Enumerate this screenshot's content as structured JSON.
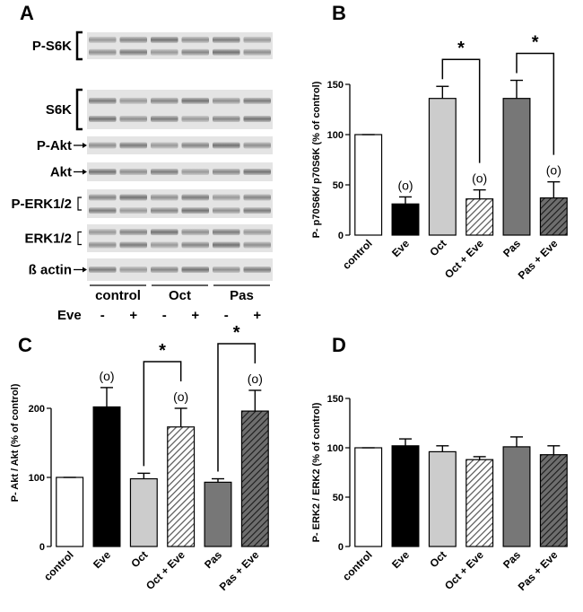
{
  "blot": {
    "panel_letter": "A",
    "rows": [
      {
        "label": "P-S6K",
        "marker": "bracket",
        "bands": 2
      },
      {
        "label": "S6K",
        "marker": "bracket",
        "bands": 2
      },
      {
        "label": "P-Akt",
        "marker": "arrow",
        "bands": 1
      },
      {
        "label": "Akt",
        "marker": "arrow",
        "bands": 1
      },
      {
        "label": "P-ERK1/2",
        "marker": "small-bracket",
        "bands": 2
      },
      {
        "label": "ERK1/2",
        "marker": "small-bracket",
        "bands": 2
      },
      {
        "label": "ß actin",
        "marker": "arrow",
        "bands": 1
      }
    ],
    "groups": [
      "control",
      "Oct",
      "Pas"
    ],
    "eve_label": "Eve",
    "eve_signs": [
      "-",
      "+",
      "-",
      "+",
      "-",
      "+"
    ]
  },
  "chart_data": [
    {
      "panel": "B",
      "type": "bar",
      "categories": [
        "control",
        "Eve",
        "Oct",
        "Oct + Eve",
        "Pas",
        "Pas + Eve"
      ],
      "values": [
        100,
        31,
        136,
        36,
        136,
        37
      ],
      "errors": [
        0,
        7,
        12,
        9,
        18,
        16
      ],
      "ylabel": "P- p70S6K/ p70S6K (% of control)",
      "ylim": [
        0,
        150
      ],
      "yticks": [
        0,
        50,
        100,
        150
      ],
      "fills": [
        "white",
        "#000000",
        "#cccccc",
        "hatch-light",
        "#777777",
        "hatch-dark"
      ],
      "annotations": [
        {
          "category": 1,
          "text": "(o)"
        },
        {
          "category": 3,
          "text": "(o)"
        },
        {
          "category": 5,
          "text": "(o)"
        }
      ],
      "significance": [
        {
          "from": 2,
          "to": 3,
          "text": "*"
        },
        {
          "from": 4,
          "to": 5,
          "text": "*"
        }
      ]
    },
    {
      "panel": "C",
      "type": "bar",
      "categories": [
        "control",
        "Eve",
        "Oct",
        "Oct + Eve",
        "Pas",
        "Pas + Eve"
      ],
      "values": [
        100,
        202,
        98,
        173,
        93,
        196
      ],
      "errors": [
        0,
        28,
        8,
        27,
        5,
        30
      ],
      "ylabel": "P- Akt / Akt (% of control)",
      "ylim": [
        0,
        300
      ],
      "yticks": [
        0,
        100,
        200
      ],
      "fills": [
        "white",
        "#000000",
        "#cccccc",
        "hatch-light",
        "#777777",
        "hatch-dark"
      ],
      "annotations": [
        {
          "category": 1,
          "text": "(o)"
        },
        {
          "category": 3,
          "text": "(o)"
        },
        {
          "category": 5,
          "text": "(o)"
        }
      ],
      "significance": [
        {
          "from": 2,
          "to": 3,
          "text": "*"
        },
        {
          "from": 4,
          "to": 5,
          "text": "*"
        }
      ]
    },
    {
      "panel": "D",
      "type": "bar",
      "categories": [
        "control",
        "Eve",
        "Oct",
        "Oct + Eve",
        "Pas",
        "Pas + Eve"
      ],
      "values": [
        100,
        102,
        96,
        88,
        101,
        93
      ],
      "errors": [
        0,
        7,
        6,
        3,
        10,
        9
      ],
      "ylabel": "P- ERK2 / ERK2 (% of control)",
      "ylim": [
        0,
        150
      ],
      "yticks": [
        0,
        50,
        100,
        150
      ],
      "fills": [
        "white",
        "#000000",
        "#cccccc",
        "hatch-light",
        "#777777",
        "hatch-dark"
      ],
      "annotations": [],
      "significance": []
    }
  ]
}
